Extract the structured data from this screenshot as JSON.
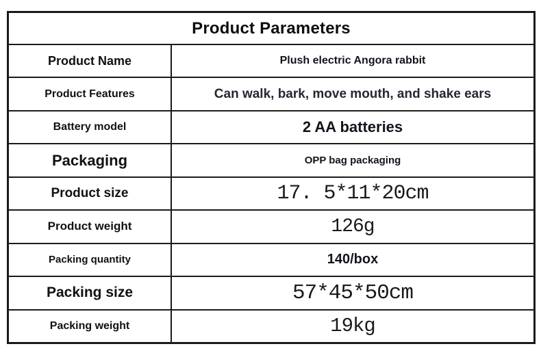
{
  "title": "Product Parameters",
  "table": {
    "rows": [
      {
        "label": "Product Name",
        "value": "Plush electric Angora rabbit"
      },
      {
        "label": "Product Features",
        "value": "Can walk, bark, move mouth, and shake ears"
      },
      {
        "label": "Battery model",
        "value": "2 AA batteries"
      },
      {
        "label": "Packaging",
        "value": "OPP bag packaging"
      },
      {
        "label": "Product size",
        "value": "17. 5*11*20cm"
      },
      {
        "label": "Product weight",
        "value": "126g"
      },
      {
        "label": "Packing quantity",
        "value": "140/box"
      },
      {
        "label": "Packing size",
        "value": "57*45*50cm"
      },
      {
        "label": "Packing weight",
        "value": "19kg"
      }
    ]
  },
  "colors": {
    "border": "#1a1a1a",
    "heading_text": "#0d0d0d",
    "label_text": "#111111",
    "feature_value_text": "#2b2433",
    "background": "#ffffff"
  }
}
